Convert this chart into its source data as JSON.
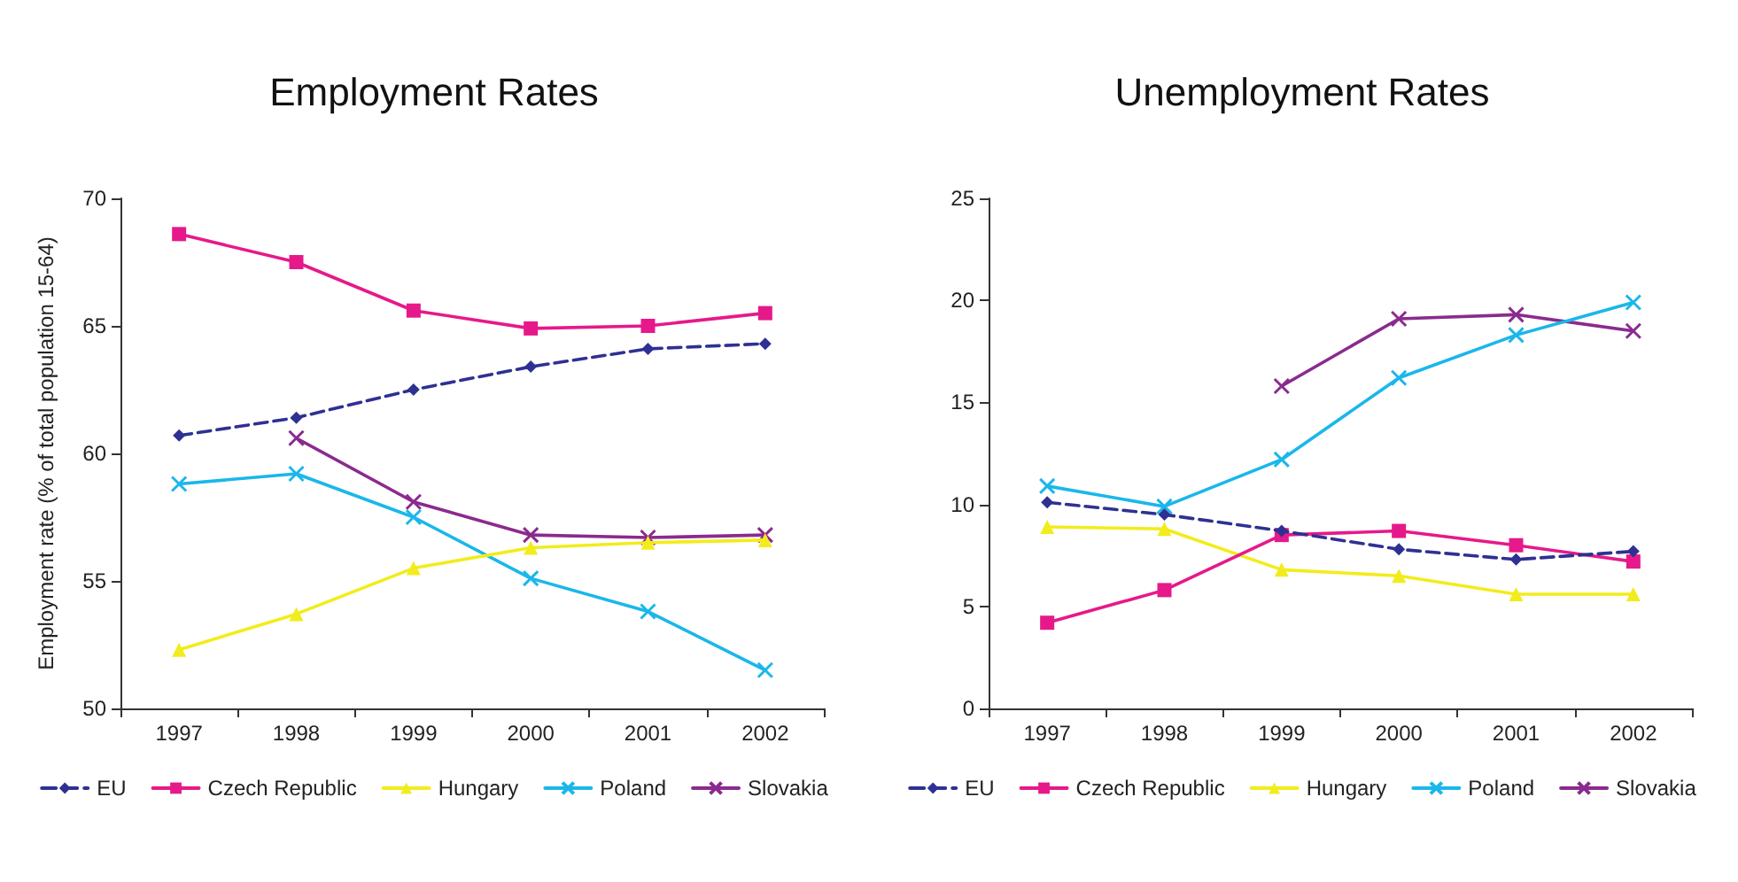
{
  "chart_data": [
    {
      "type": "line",
      "title": "Employment Rates",
      "ylabel": "Employment rate (% of total population 15-64)",
      "categories": [
        "1997",
        "1998",
        "1999",
        "2000",
        "2001",
        "2002"
      ],
      "ylim": [
        50,
        70
      ],
      "yticks": [
        50,
        55,
        60,
        65,
        70
      ],
      "grid": false,
      "legend": "bottom",
      "series": [
        {
          "name": "EU",
          "color": "#2e3192",
          "marker": "diamond",
          "line_style": "dashed",
          "values": [
            60.7,
            61.4,
            62.5,
            63.4,
            64.1,
            64.3
          ]
        },
        {
          "name": "Czech Republic",
          "color": "#e6198a",
          "marker": "square",
          "line_style": "solid",
          "values": [
            68.6,
            67.5,
            65.6,
            64.9,
            65.0,
            65.5
          ]
        },
        {
          "name": "Hungary",
          "color": "#f2ec1c",
          "marker": "triangle",
          "line_style": "solid",
          "values": [
            52.3,
            53.7,
            55.5,
            56.3,
            56.5,
            56.6
          ]
        },
        {
          "name": "Poland",
          "color": "#1ab7ea",
          "marker": "cross",
          "line_style": "solid",
          "values": [
            58.8,
            59.2,
            57.5,
            55.1,
            53.8,
            51.5
          ]
        },
        {
          "name": "Slovakia",
          "color": "#8b2a8e",
          "marker": "cross",
          "line_style": "solid",
          "values": [
            null,
            60.6,
            58.1,
            56.8,
            56.7,
            56.8
          ]
        }
      ]
    },
    {
      "type": "line",
      "title": "Unemployment Rates",
      "categories": [
        "1997",
        "1998",
        "1999",
        "2000",
        "2001",
        "2002"
      ],
      "ylim": [
        0,
        25
      ],
      "yticks": [
        0,
        5,
        10,
        15,
        20,
        25
      ],
      "grid": false,
      "legend": "bottom",
      "series": [
        {
          "name": "EU",
          "color": "#2e3192",
          "marker": "diamond",
          "line_style": "dashed",
          "values": [
            10.1,
            9.5,
            8.7,
            7.8,
            7.3,
            7.7
          ]
        },
        {
          "name": "Czech Republic",
          "color": "#e6198a",
          "marker": "square",
          "line_style": "solid",
          "values": [
            4.2,
            5.8,
            8.5,
            8.7,
            8.0,
            7.2
          ]
        },
        {
          "name": "Hungary",
          "color": "#f2ec1c",
          "marker": "triangle",
          "line_style": "solid",
          "values": [
            8.9,
            8.8,
            6.8,
            6.5,
            5.6,
            5.6
          ]
        },
        {
          "name": "Poland",
          "color": "#1ab7ea",
          "marker": "cross",
          "line_style": "solid",
          "values": [
            10.9,
            9.9,
            12.2,
            16.2,
            18.3,
            19.9
          ]
        },
        {
          "name": "Slovakia",
          "color": "#8b2a8e",
          "marker": "cross",
          "line_style": "solid",
          "values": [
            null,
            null,
            15.8,
            19.1,
            19.3,
            18.5
          ]
        }
      ]
    }
  ]
}
